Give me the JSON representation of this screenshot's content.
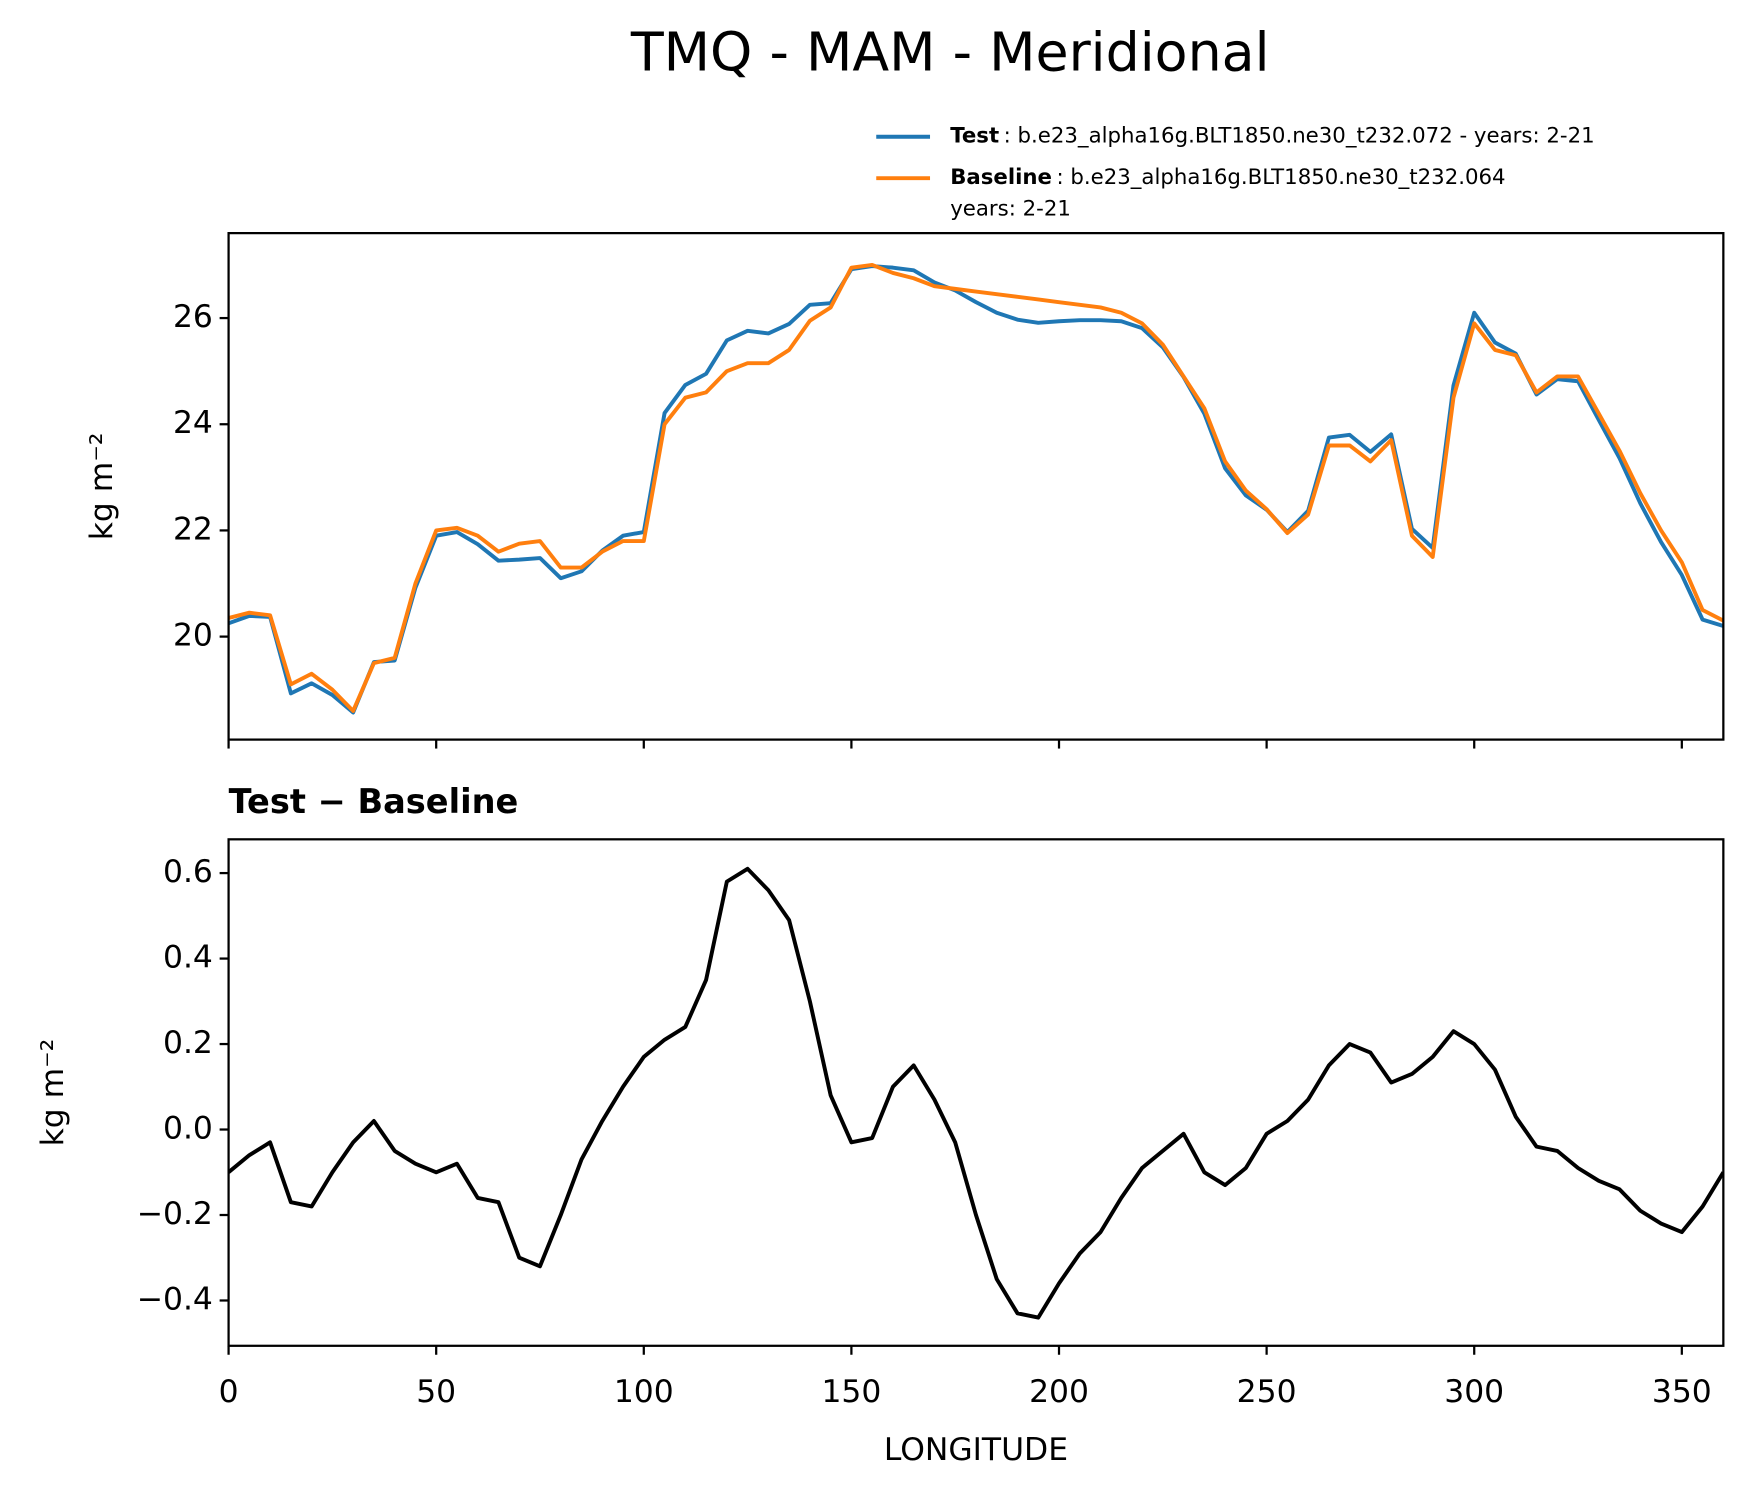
{
  "chart_data": [
    {
      "type": "line",
      "title": "TMQ - MAM - Meridional",
      "ylabel": "kg m⁻²",
      "x": [
        0,
        5,
        10,
        15,
        20,
        25,
        30,
        35,
        40,
        45,
        50,
        55,
        60,
        65,
        70,
        75,
        80,
        85,
        90,
        95,
        100,
        105,
        110,
        115,
        120,
        125,
        130,
        135,
        140,
        145,
        150,
        155,
        160,
        165,
        170,
        175,
        180,
        185,
        190,
        195,
        200,
        205,
        210,
        215,
        220,
        225,
        230,
        235,
        240,
        245,
        250,
        255,
        260,
        265,
        270,
        275,
        280,
        285,
        290,
        295,
        300,
        305,
        310,
        315,
        320,
        325,
        330,
        335,
        340,
        345,
        350,
        355,
        360
      ],
      "xlim": [
        0,
        360
      ],
      "ylim": [
        18.06,
        27.6
      ],
      "yticks": [
        20,
        22,
        24,
        26
      ],
      "series": [
        {
          "name": "Test",
          "label": [
            ": b.e23_alpha16g.BLT1850.ne30_t232.072 - years: 2-21"
          ],
          "color": "#1f77b4",
          "values": [
            20.25,
            20.39,
            20.37,
            18.93,
            19.12,
            18.9,
            18.57,
            19.52,
            19.55,
            20.92,
            21.9,
            21.97,
            21.74,
            21.43,
            21.45,
            21.48,
            21.1,
            21.23,
            21.62,
            21.9,
            21.97,
            24.21,
            24.74,
            24.95,
            25.58,
            25.76,
            25.71,
            25.89,
            26.25,
            26.28,
            26.92,
            26.98,
            26.95,
            26.9,
            26.67,
            26.52,
            26.3,
            26.1,
            25.97,
            25.91,
            25.94,
            25.96,
            25.96,
            25.94,
            25.81,
            25.45,
            24.89,
            24.2,
            23.17,
            22.66,
            22.39,
            21.97,
            22.37,
            23.75,
            23.8,
            23.48,
            23.81,
            22.03,
            21.67,
            24.73,
            26.1,
            25.54,
            25.33,
            24.56,
            24.85,
            24.81,
            24.08,
            23.36,
            22.51,
            21.78,
            21.16,
            20.32,
            20.2
          ]
        },
        {
          "name": "Baseline",
          "label": [
            ": b.e23_alpha16g.BLT1850.ne30_t232.064",
            "years: 2-21"
          ],
          "color": "#ff7f0e",
          "values": [
            20.35,
            20.45,
            20.4,
            19.1,
            19.3,
            19.0,
            18.6,
            19.5,
            19.6,
            21.0,
            22.0,
            22.05,
            21.9,
            21.6,
            21.75,
            21.8,
            21.3,
            21.3,
            21.6,
            21.8,
            21.8,
            24.0,
            24.5,
            24.6,
            25.0,
            25.15,
            25.15,
            25.4,
            25.95,
            26.2,
            26.95,
            27.0,
            26.85,
            26.75,
            26.6,
            26.55,
            26.5,
            26.45,
            26.4,
            26.35,
            26.3,
            26.25,
            26.2,
            26.1,
            25.9,
            25.5,
            24.9,
            24.3,
            23.3,
            22.75,
            22.4,
            21.95,
            22.3,
            23.6,
            23.6,
            23.3,
            23.7,
            21.9,
            21.5,
            24.5,
            25.9,
            25.4,
            25.3,
            24.6,
            24.9,
            24.9,
            24.2,
            23.5,
            22.7,
            22.0,
            21.4,
            20.5,
            20.3
          ]
        }
      ]
    },
    {
      "type": "line",
      "title": "Test − Baseline",
      "ylabel": "kg m⁻²",
      "xlabel": "LONGITUDE",
      "x": [
        0,
        5,
        10,
        15,
        20,
        25,
        30,
        35,
        40,
        45,
        50,
        55,
        60,
        65,
        70,
        75,
        80,
        85,
        90,
        95,
        100,
        105,
        110,
        115,
        120,
        125,
        130,
        135,
        140,
        145,
        150,
        155,
        160,
        165,
        170,
        175,
        180,
        185,
        190,
        195,
        200,
        205,
        210,
        215,
        220,
        225,
        230,
        235,
        240,
        245,
        250,
        255,
        260,
        265,
        270,
        275,
        280,
        285,
        290,
        295,
        300,
        305,
        310,
        315,
        320,
        325,
        330,
        335,
        340,
        345,
        350,
        355,
        360
      ],
      "xlim": [
        0,
        360
      ],
      "xticks": [
        0,
        50,
        100,
        150,
        200,
        250,
        300,
        350
      ],
      "ylim": [
        -0.506,
        0.679
      ],
      "yticks": [
        {
          "value": -0.4,
          "label": "−0.4"
        },
        {
          "value": -0.2,
          "label": "−0.2"
        },
        {
          "value": 0,
          "label": "0.0"
        },
        0.2,
        0.4,
        0.6
      ],
      "series": [
        {
          "color": "#000000",
          "values": [
            -0.1,
            -0.06,
            -0.03,
            -0.17,
            -0.18,
            -0.1,
            -0.03,
            0.02,
            -0.05,
            -0.08,
            -0.1,
            -0.08,
            -0.16,
            -0.17,
            -0.3,
            -0.32,
            -0.2,
            -0.07,
            0.02,
            0.1,
            0.17,
            0.21,
            0.24,
            0.35,
            0.58,
            0.61,
            0.56,
            0.49,
            0.3,
            0.08,
            -0.03,
            -0.02,
            0.1,
            0.15,
            0.07,
            -0.03,
            -0.2,
            -0.35,
            -0.43,
            -0.44,
            -0.36,
            -0.29,
            -0.24,
            -0.16,
            -0.09,
            -0.05,
            -0.01,
            -0.1,
            -0.13,
            -0.09,
            -0.01,
            0.02,
            0.07,
            0.15,
            0.2,
            0.18,
            0.11,
            0.13,
            0.17,
            0.23,
            0.2,
            0.14,
            0.03,
            -0.04,
            -0.05,
            -0.09,
            -0.12,
            -0.14,
            -0.19,
            -0.22,
            -0.24,
            -0.18,
            -0.1
          ]
        }
      ]
    }
  ]
}
